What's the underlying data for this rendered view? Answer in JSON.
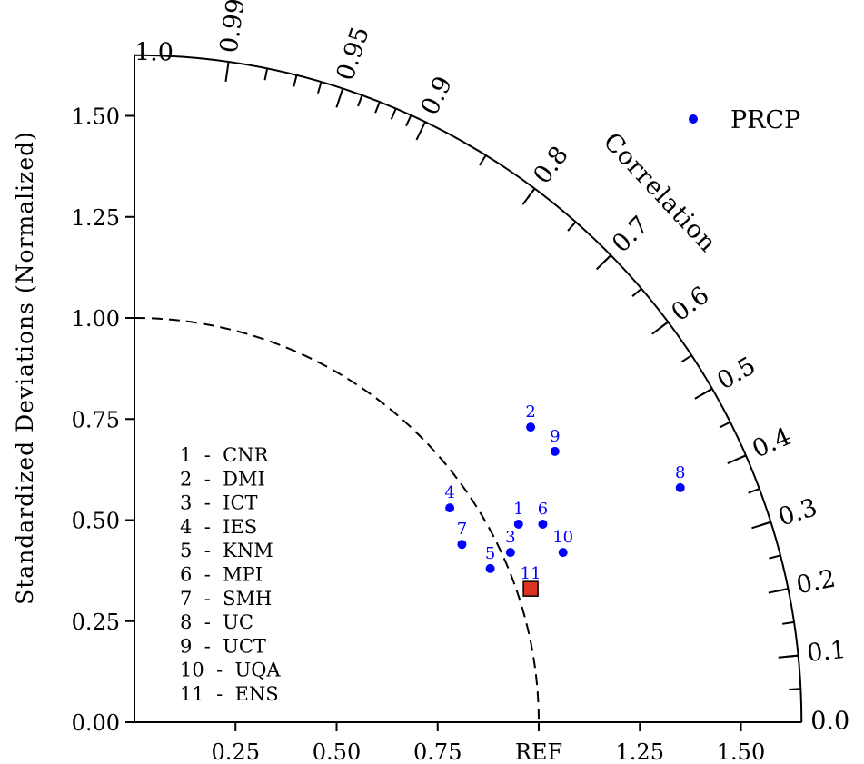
{
  "chart_data": {
    "type": "scatter",
    "subtype": "taylor-diagram",
    "ylabel": "Standardized Deviations (Normalized)",
    "arc_label": "Correlation",
    "std_range": [
      0,
      1.65
    ],
    "reference_std": 1.0,
    "reference_label": "REF",
    "y_ticks": [
      "0.00",
      "0.25",
      "0.50",
      "0.75",
      "1.00",
      "1.25",
      "1.50"
    ],
    "x_ticks": [
      {
        "value": 0.25,
        "label": "0.25"
      },
      {
        "value": 0.5,
        "label": "0.50"
      },
      {
        "value": 0.75,
        "label": "0.75"
      },
      {
        "value": 1.0,
        "label": "REF"
      },
      {
        "value": 1.25,
        "label": "1.25"
      },
      {
        "value": 1.5,
        "label": "1.50"
      }
    ],
    "correlation_labels": [
      {
        "value": 0.0,
        "label": "0.0"
      },
      {
        "value": 0.1,
        "label": "0.1"
      },
      {
        "value": 0.2,
        "label": "0.2"
      },
      {
        "value": 0.3,
        "label": "0.3"
      },
      {
        "value": 0.4,
        "label": "0.4"
      },
      {
        "value": 0.5,
        "label": "0.5"
      },
      {
        "value": 0.6,
        "label": "0.6"
      },
      {
        "value": 0.7,
        "label": "0.7"
      },
      {
        "value": 0.8,
        "label": "0.8"
      },
      {
        "value": 0.9,
        "label": "0.9"
      },
      {
        "value": 0.95,
        "label": "0.95"
      },
      {
        "value": 0.99,
        "label": "0.99"
      },
      {
        "value": 1.0,
        "label": "1.0"
      }
    ],
    "legend": {
      "series": "PRCP",
      "color": "#0000ff",
      "position": "top-right"
    },
    "points": [
      {
        "id": "1",
        "x": 0.95,
        "y": 0.49
      },
      {
        "id": "2",
        "x": 0.98,
        "y": 0.73
      },
      {
        "id": "3",
        "x": 0.93,
        "y": 0.42
      },
      {
        "id": "4",
        "x": 0.78,
        "y": 0.53
      },
      {
        "id": "5",
        "x": 0.88,
        "y": 0.38
      },
      {
        "id": "6",
        "x": 1.01,
        "y": 0.49
      },
      {
        "id": "7",
        "x": 0.81,
        "y": 0.44
      },
      {
        "id": "8",
        "x": 1.35,
        "y": 0.58
      },
      {
        "id": "9",
        "x": 1.04,
        "y": 0.67
      },
      {
        "id": "10",
        "x": 1.06,
        "y": 0.42
      }
    ],
    "ensemble_point": {
      "id": "11",
      "x": 0.98,
      "y": 0.33,
      "color": "#dd3322"
    },
    "model_key": [
      "1  -  CNR",
      "2  -  DMI",
      "3  -  ICT",
      "4  -  IES",
      "5  -  KNM",
      "6  -  MPI",
      "7  -  SMH",
      "8  -  UC",
      "9  -  UCT",
      "10  -  UQA",
      "11  -  ENS"
    ]
  }
}
